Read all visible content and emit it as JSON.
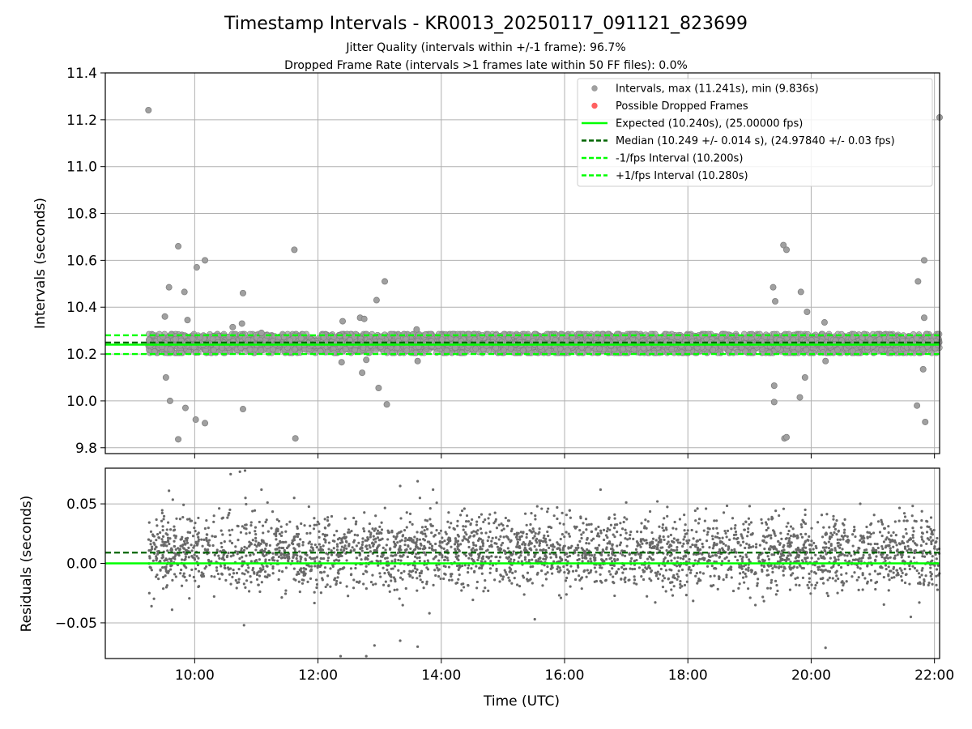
{
  "chart_data": [
    {
      "type": "scatter",
      "title": "Timestamp Intervals - KR0013_20250117_091121_823699",
      "subtitle_lines": [
        "Jitter Quality (intervals within +/-1 frame): 96.7%",
        "Dropped Frame Rate (intervals >1 frames late within 50 FF files): 0.0%"
      ],
      "xlabel": "",
      "ylabel": "Intervals (seconds)",
      "xlim": [
        "08:33",
        "22:05"
      ],
      "ylim": [
        9.775,
        11.4
      ],
      "x_ticks": [
        "10:00",
        "12:00",
        "14:00",
        "16:00",
        "18:00",
        "20:00",
        "22:00"
      ],
      "y_ticks": [
        9.8,
        10.0,
        10.2,
        10.4,
        10.6,
        10.8,
        11.0,
        11.2,
        11.4
      ],
      "y_tick_labels": [
        "9.8",
        "10.0",
        "10.2",
        "10.4",
        "10.6",
        "10.8",
        "11.0",
        "11.2",
        "11.4"
      ],
      "grid": true,
      "legend_placement": "top-right",
      "legend": [
        {
          "label": "Intervals, max (11.241s), min (9.836s)",
          "kind": "marker",
          "color": "#808080"
        },
        {
          "label": "Possible Dropped Frames",
          "kind": "marker",
          "color": "#ff0000"
        },
        {
          "label": "Expected (10.240s), (25.00000 fps)",
          "kind": "solid",
          "color": "#00ff00"
        },
        {
          "label": "Median (10.249 +/- 0.014 s), (24.97840 +/- 0.03 fps)",
          "kind": "dashed",
          "color": "#006400"
        },
        {
          "label": "-1/fps Interval (10.200s)",
          "kind": "dashed",
          "color": "#00ff00"
        },
        {
          "label": "+1/fps Interval (10.280s)",
          "kind": "dashed",
          "color": "#00ff00"
        }
      ],
      "lines": {
        "expected": 10.24,
        "median": 10.249,
        "minus_fps": 10.2,
        "plus_fps": 10.28
      },
      "data_range": [
        "09:15",
        "22:05"
      ],
      "series": [
        {
          "name": "Intervals, max (11.241s), min (9.836s)",
          "points": [
            [
              "09:15",
              11.241
            ],
            [
              "22:05",
              11.21
            ],
            [
              "09:44",
              10.66
            ],
            [
              "10:02",
              10.57
            ],
            [
              "10:10",
              10.6
            ],
            [
              "09:50",
              10.465
            ],
            [
              "09:35",
              10.485
            ],
            [
              "09:31",
              10.36
            ],
            [
              "09:53",
              10.345
            ],
            [
              "10:47",
              10.46
            ],
            [
              "10:46",
              10.33
            ],
            [
              "11:37",
              10.645
            ],
            [
              "13:05",
              10.51
            ],
            [
              "12:57",
              10.43
            ],
            [
              "12:41",
              10.355
            ],
            [
              "12:45",
              10.35
            ],
            [
              "12:24",
              10.34
            ],
            [
              "09:32",
              10.1
            ],
            [
              "09:36",
              10.0
            ],
            [
              "09:51",
              9.97
            ],
            [
              "10:01",
              9.92
            ],
            [
              "10:10",
              9.905
            ],
            [
              "09:44",
              9.836
            ],
            [
              "10:47",
              9.965
            ],
            [
              "11:38",
              9.84
            ],
            [
              "12:43",
              10.12
            ],
            [
              "12:47",
              10.175
            ],
            [
              "12:59",
              10.055
            ],
            [
              "13:07",
              9.985
            ],
            [
              "12:23",
              10.165
            ],
            [
              "13:37",
              10.17
            ],
            [
              "19:23",
              10.485
            ],
            [
              "19:25",
              10.425
            ],
            [
              "19:33",
              10.665
            ],
            [
              "19:36",
              10.645
            ],
            [
              "19:50",
              10.465
            ],
            [
              "19:56",
              10.38
            ],
            [
              "20:13",
              10.335
            ],
            [
              "19:24",
              10.065
            ],
            [
              "19:24",
              9.995
            ],
            [
              "19:34",
              9.84
            ],
            [
              "19:36",
              9.845
            ],
            [
              "19:49",
              10.015
            ],
            [
              "19:54",
              10.1
            ],
            [
              "20:14",
              10.17
            ],
            [
              "21:44",
              10.51
            ],
            [
              "21:50",
              10.6
            ],
            [
              "21:50",
              10.355
            ],
            [
              "21:49",
              10.135
            ],
            [
              "21:43",
              9.98
            ],
            [
              "21:51",
              9.91
            ],
            [
              "10:37",
              10.315
            ],
            [
              "11:05",
              10.29
            ],
            [
              "13:36",
              10.305
            ]
          ],
          "band": {
            "from": "09:15",
            "to": "22:05",
            "y_min": 10.205,
            "y_max": 10.285,
            "count": 4500
          }
        }
      ]
    },
    {
      "type": "scatter",
      "title": "",
      "xlabel": "Time (UTC)",
      "ylabel": "Residuals (seconds)",
      "xlim": [
        "08:33",
        "22:05"
      ],
      "ylim": [
        -0.08,
        0.08
      ],
      "x_ticks": [
        "10:00",
        "12:00",
        "14:00",
        "16:00",
        "18:00",
        "20:00",
        "22:00"
      ],
      "x_tick_labels": [
        "10:00",
        "12:00",
        "14:00",
        "16:00",
        "18:00",
        "20:00",
        "22:00"
      ],
      "y_ticks": [
        -0.05,
        0.0,
        0.05
      ],
      "y_tick_labels": [
        "−0.05",
        "0.00",
        "0.05"
      ],
      "grid": true,
      "lines": {
        "expected": 0.0,
        "median": 0.009
      },
      "series": [
        {
          "color": "#696969",
          "points": [
            [
              "10:44",
              0.077
            ],
            [
              "10:49",
              0.078
            ],
            [
              "10:35",
              0.075
            ],
            [
              "11:05",
              0.062
            ],
            [
              "13:20",
              0.065
            ],
            [
              "13:37",
              0.069
            ],
            [
              "13:52",
              0.062
            ],
            [
              "09:35",
              0.061
            ],
            [
              "16:35",
              0.062
            ],
            [
              "10:48",
              -0.052
            ],
            [
              "12:22",
              -0.078
            ],
            [
              "12:47",
              -0.078
            ],
            [
              "12:55",
              -0.069
            ],
            [
              "13:20",
              -0.065
            ],
            [
              "13:37",
              -0.07
            ],
            [
              "20:14",
              -0.071
            ],
            [
              "15:31",
              -0.047
            ],
            [
              "21:37",
              -0.045
            ],
            [
              "09:18",
              -0.036
            ],
            [
              "09:38",
              -0.039
            ]
          ],
          "band": {
            "from": "09:15",
            "to": "22:05",
            "y_center": 0.009,
            "spread": 0.02,
            "count": 3200
          }
        }
      ]
    }
  ]
}
